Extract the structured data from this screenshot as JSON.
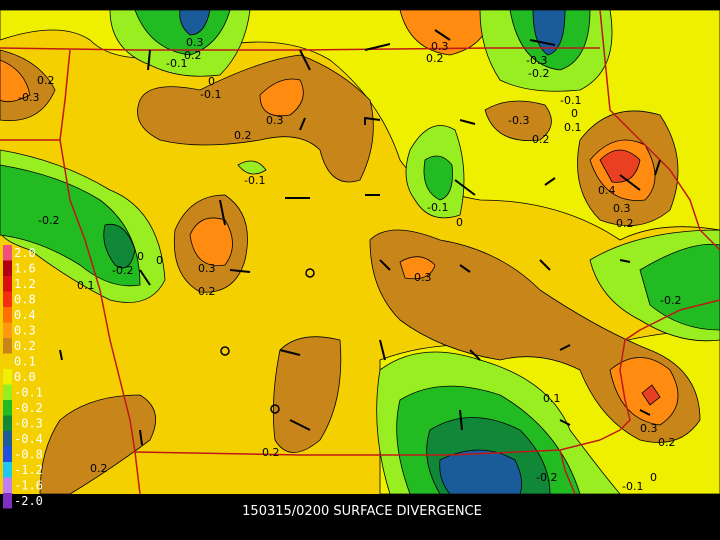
{
  "title": "150315/0200 SURFACE DIVERGENCE",
  "legend": [
    {
      "label": "2.0",
      "color": "#f05080"
    },
    {
      "label": "1.6",
      "color": "#b00010"
    },
    {
      "label": "1.2",
      "color": "#d81010"
    },
    {
      "label": "0.8",
      "color": "#f03010"
    },
    {
      "label": "0.4",
      "color": "#ff7000"
    },
    {
      "label": "0.3",
      "color": "#ff9a10"
    },
    {
      "label": "0.2",
      "color": "#c8861a"
    },
    {
      "label": "0.1",
      "color": "#f5d000"
    },
    {
      "label": "0.0",
      "color": "#eef000"
    },
    {
      "label": "-0.1",
      "color": "#99ee22"
    },
    {
      "label": "-0.2",
      "color": "#22bb22"
    },
    {
      "label": "-0.3",
      "color": "#108838"
    },
    {
      "label": "-0.4",
      "color": "#1a5c9a"
    },
    {
      "label": "-0.8",
      "color": "#2050e0"
    },
    {
      "label": "-1.2",
      "color": "#20c8f0"
    },
    {
      "label": "-1.6",
      "color": "#c080f0"
    },
    {
      "label": "-2.0",
      "color": "#8030c0"
    }
  ],
  "contour_labels": [
    "0.3",
    "0.2",
    "-0.1",
    "0",
    "-0.1",
    "0.3",
    "0.2",
    "-0.3",
    "-0.2",
    "0.2",
    "-0.3",
    "0.3",
    "0.2",
    "-0.1",
    "0",
    "0.1",
    "-0.3",
    "0.2",
    "-0.1",
    "0.4",
    "0.3",
    "0.2",
    "-0.1",
    "0",
    "-0.2",
    "-0.2",
    "0",
    "0",
    "0.3",
    "0.2",
    "0.3",
    "0.1",
    "-0.2",
    "0.1",
    "0.3",
    "0.2",
    "0.2",
    "0.2",
    "-0.2",
    "0",
    "-0.1"
  ]
}
